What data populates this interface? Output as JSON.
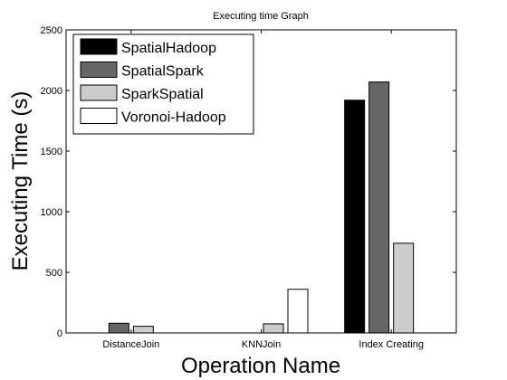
{
  "chart_data": {
    "type": "bar",
    "title": "Executing time Graph",
    "xlabel": "Operation Name",
    "ylabel": "Executing Time (s)",
    "categories": [
      "DistanceJoin",
      "KNNJoin",
      "Index Creating"
    ],
    "ylim": [
      0,
      2500
    ],
    "yticks": [
      0,
      500,
      1000,
      1500,
      2000,
      2500
    ],
    "grid": false,
    "legend_position": "top-left",
    "series": [
      {
        "name": "SpatialHadoop",
        "color": "#000000",
        "values": [
          0,
          0,
          1920
        ]
      },
      {
        "name": "SpatialSpark",
        "color": "#666666",
        "values": [
          80,
          0,
          2070
        ]
      },
      {
        "name": "SparkSpatial",
        "color": "#cccccc",
        "values": [
          55,
          75,
          740
        ]
      },
      {
        "name": "Voronoi-Hadoop",
        "color": "#ffffff",
        "values": [
          0,
          360,
          0
        ]
      }
    ]
  }
}
